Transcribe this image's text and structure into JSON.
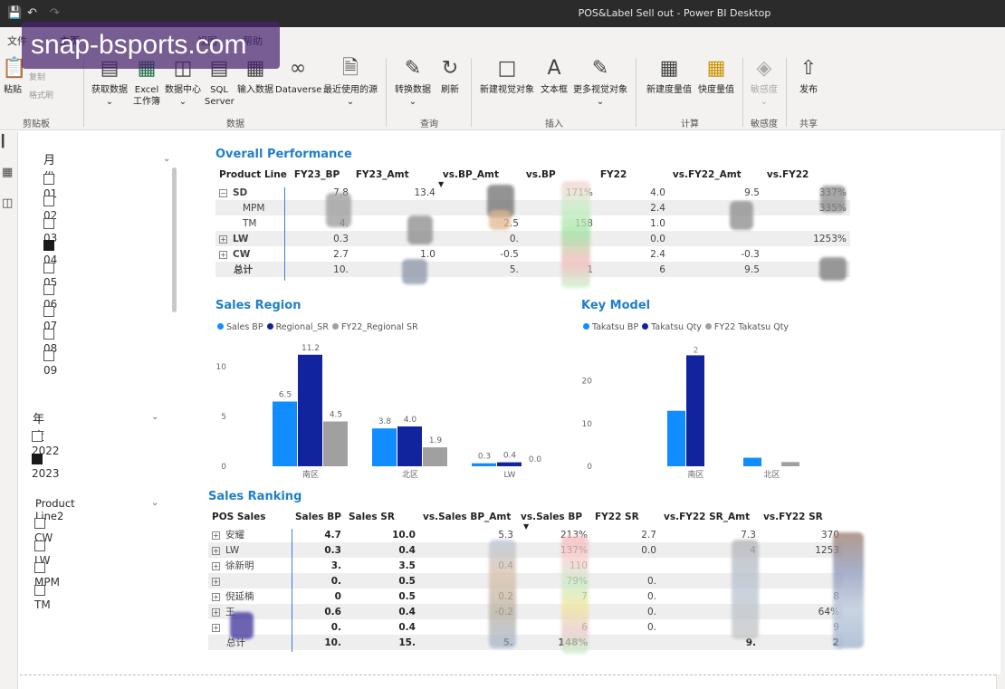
{
  "window": {
    "title": "POS&Label Sell out - Power BI Desktop"
  },
  "watermark": "snap-bsports.com",
  "menu": {
    "file": "文件",
    "home": "主页",
    "view": "视图",
    "help": "帮助"
  },
  "ribbon": {
    "paste": "粘贴",
    "cut": "剪切",
    "copy": "复制",
    "format_painter": "格式刷",
    "get_data": "获取数据",
    "excel": "Excel 工作簿",
    "data_hub": "数据中心",
    "sql_server": "SQL Server",
    "enter_data": "输入数据",
    "dataverse": "Dataverse",
    "recent_sources": "最近使用的源",
    "transform_data": "转换数据",
    "refresh": "刷新",
    "new_visual": "新建视觉对象",
    "text_box": "文本框",
    "more_visuals": "更多视觉对象",
    "new_measure": "新建度量值",
    "quick_measure": "快度量值",
    "sensitivity": "敏感度",
    "publish": "发布",
    "groups": {
      "clipboard": "剪贴板",
      "data": "数据",
      "queries": "查询",
      "insert": "插入",
      "calculations": "计算",
      "sensitivity": "敏感度",
      "share": "共享"
    }
  },
  "slicers": {
    "month": {
      "title": "月份",
      "items": [
        {
          "label": "01",
          "checked": false
        },
        {
          "label": "02",
          "checked": false
        },
        {
          "label": "03",
          "checked": false
        },
        {
          "label": "04",
          "checked": true
        },
        {
          "label": "05",
          "checked": false
        },
        {
          "label": "06",
          "checked": false
        },
        {
          "label": "07",
          "checked": false
        },
        {
          "label": "08",
          "checked": false
        },
        {
          "label": "09",
          "checked": false
        }
      ]
    },
    "year": {
      "title": "年度",
      "items": [
        {
          "label": "2022",
          "checked": false
        },
        {
          "label": "2023",
          "checked": true
        }
      ]
    },
    "product_line": {
      "title": "Product Line2",
      "items": [
        {
          "label": "CW",
          "checked": false
        },
        {
          "label": "LW",
          "checked": false
        },
        {
          "label": "MPM",
          "checked": false
        },
        {
          "label": "TM",
          "checked": false
        }
      ]
    }
  },
  "overall": {
    "title": "Overall Performance",
    "headers": [
      "Product Line",
      "FY23_BP",
      "FY23_Amt",
      "vs.BP_Amt",
      "vs.BP",
      "FY22",
      "vs.FY22_Amt",
      "vs.FY22"
    ],
    "rows": [
      {
        "label": "SD",
        "exp": "⊟",
        "c1": "7.8",
        "c2": "13.4",
        "c3": "",
        "c4": "171%",
        "c5": "4.0",
        "c6": "9.5",
        "c7": "337%"
      },
      {
        "label": "MPM",
        "exp": "",
        "c1": "",
        "c2": "",
        "c3": "",
        "c4": "",
        "c5": "2.4",
        "c6": "",
        "c7": "335%"
      },
      {
        "label": "TM",
        "exp": "",
        "c1": "4.",
        "c2": "",
        "c3": "2.5",
        "c4": "158",
        "c5": "1.0",
        "c6": "",
        "c7": ""
      },
      {
        "label": "LW",
        "exp": "⊞",
        "c1": "0.3",
        "c2": "",
        "c3": "0.",
        "c4": "",
        "c5": "0.0",
        "c6": "",
        "c7": "1253%"
      },
      {
        "label": "CW",
        "exp": "⊞",
        "c1": "2.7",
        "c2": "1.0",
        "c3": "-0.5",
        "c4": "",
        "c5": "2.4",
        "c6": "-0.3",
        "c7": ""
      },
      {
        "label": "总计",
        "exp": "",
        "c1": "10.",
        "c2": "",
        "c3": "5.",
        "c4": "1",
        "c5": "6",
        "c6": "9.5",
        "c7": ""
      }
    ]
  },
  "sales_region": {
    "title": "Sales Region",
    "legend": [
      "Sales BP",
      "Regional_SR",
      "FY22_Regional SR"
    ],
    "colors": [
      "#118dff",
      "#12239e",
      "#a0a0a0"
    ]
  },
  "key_model": {
    "title": "Key Model",
    "legend": [
      "Takatsu BP",
      "Takatsu Qty",
      "FY22 Takatsu Qty"
    ],
    "colors": [
      "#118dff",
      "#12239e",
      "#a0a0a0"
    ]
  },
  "chart_data": [
    {
      "type": "bar",
      "title": "Sales Region",
      "categories": [
        "南区",
        "北区",
        "LW"
      ],
      "series": [
        {
          "name": "Sales BP",
          "values": [
            6.5,
            3.8,
            0.3
          ]
        },
        {
          "name": "Regional_SR",
          "values": [
            11.2,
            4.0,
            0.4
          ]
        },
        {
          "name": "FY22_Regional SR",
          "values": [
            4.5,
            1.9,
            0.0
          ]
        }
      ],
      "yticks": [
        "0",
        "5",
        "10"
      ],
      "ylim": [
        0,
        12
      ]
    },
    {
      "type": "bar",
      "title": "Key Model",
      "categories": [
        "南区",
        "北区"
      ],
      "series": [
        {
          "name": "Takatsu BP",
          "values": [
            13,
            2
          ]
        },
        {
          "name": "Takatsu Qty",
          "values": [
            26,
            0
          ]
        },
        {
          "name": "FY22 Takatsu Qty",
          "values": [
            0,
            1
          ]
        }
      ],
      "data_labels": [
        "2"
      ],
      "yticks": [
        "0",
        "10",
        "20"
      ],
      "ylim": [
        0,
        28
      ]
    }
  ],
  "ranking": {
    "title": "Sales Ranking",
    "headers": [
      "POS Sales",
      "Sales BP",
      "Sales SR",
      "vs.Sales BP_Amt",
      "vs.Sales BP",
      "FY22 SR",
      "vs.FY22 SR_Amt",
      "vs.FY22 SR"
    ],
    "rows": [
      {
        "label": "安耀",
        "c1": "4.7",
        "c2": "10.0",
        "c3": "5.3",
        "c4": "213%",
        "c5": "2.7",
        "c6": "7.3",
        "c7": "370"
      },
      {
        "label": "LW",
        "c1": "0.3",
        "c2": "0.4",
        "c3": "",
        "c4": "137%",
        "c5": "0.0",
        "c6": "4",
        "c7": "1253"
      },
      {
        "label": "徐新明",
        "c1": "3.",
        "c2": "3.5",
        "c3": "0.4",
        "c4": "110",
        "c5": "",
        "c6": "",
        "c7": ""
      },
      {
        "label": "",
        "c1": "0.",
        "c2": "0.5",
        "c3": "",
        "c4": "79%",
        "c5": "0.",
        "c6": "",
        "c7": ""
      },
      {
        "label": "倪延楠",
        "c1": "0",
        "c2": "0.5",
        "c3": "0.2",
        "c4": "7",
        "c5": "0.",
        "c6": "",
        "c7": "8"
      },
      {
        "label": "王",
        "c1": "0.6",
        "c2": "0.4",
        "c3": "-0.2",
        "c4": "",
        "c5": "0.",
        "c6": "",
        "c7": "64%"
      },
      {
        "label": "",
        "c1": "0.",
        "c2": "0.4",
        "c3": "",
        "c4": "6",
        "c5": "0.",
        "c6": "",
        "c7": "9"
      },
      {
        "label": "总计",
        "c1": "10.",
        "c2": "15.",
        "c3": "5.",
        "c4": "148%",
        "c5": "",
        "c6": "9.",
        "c7": "2"
      }
    ]
  }
}
